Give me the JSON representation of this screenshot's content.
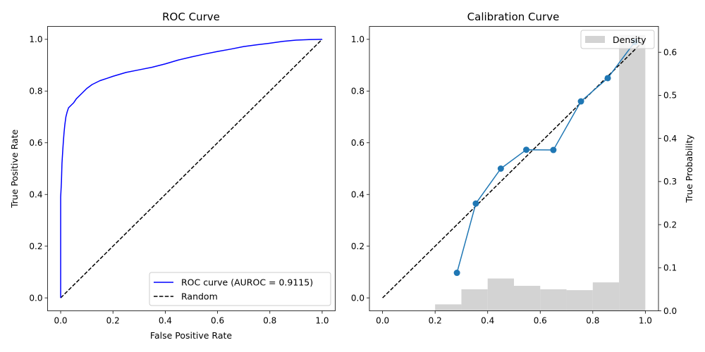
{
  "chart_data": [
    {
      "type": "line",
      "title": "ROC Curve",
      "xlabel": "False Positive Rate",
      "ylabel": "True Positive Rate",
      "xlim": [
        -0.05,
        1.05
      ],
      "ylim": [
        -0.05,
        1.05
      ],
      "xticks": [
        "0.0",
        "0.2",
        "0.4",
        "0.6",
        "0.8",
        "1.0"
      ],
      "yticks": [
        "0.0",
        "0.2",
        "0.4",
        "0.6",
        "0.8",
        "1.0"
      ],
      "legend_position": "lower-right",
      "grid": false,
      "series": [
        {
          "name": "ROC curve (AUROC = 0.9115)",
          "color": "#0000ff",
          "style": "solid",
          "x": [
            0.0,
            0.0,
            0.003,
            0.005,
            0.008,
            0.01,
            0.013,
            0.016,
            0.02,
            0.025,
            0.03,
            0.04,
            0.05,
            0.06,
            0.08,
            0.1,
            0.12,
            0.15,
            0.18,
            0.2,
            0.25,
            0.3,
            0.35,
            0.4,
            0.45,
            0.5,
            0.55,
            0.6,
            0.65,
            0.7,
            0.75,
            0.8,
            0.85,
            0.9,
            0.95,
            1.0
          ],
          "y": [
            0.0,
            0.39,
            0.45,
            0.52,
            0.57,
            0.6,
            0.64,
            0.67,
            0.7,
            0.72,
            0.735,
            0.745,
            0.755,
            0.77,
            0.79,
            0.81,
            0.825,
            0.84,
            0.85,
            0.857,
            0.872,
            0.882,
            0.892,
            0.905,
            0.92,
            0.932,
            0.943,
            0.953,
            0.962,
            0.972,
            0.979,
            0.985,
            0.992,
            0.997,
            0.999,
            1.0
          ]
        },
        {
          "name": "Random",
          "color": "#000000",
          "style": "dashed",
          "x": [
            0,
            1
          ],
          "y": [
            0,
            1
          ]
        }
      ]
    },
    {
      "type": "line",
      "title": "Calibration Curve",
      "xlabel": "",
      "ylabel": "",
      "y2label": "True Probability",
      "xlim": [
        -0.05,
        1.05
      ],
      "ylim": [
        -0.05,
        1.05
      ],
      "y2lim": [
        0,
        0.66
      ],
      "xticks": [
        "0.0",
        "0.2",
        "0.4",
        "0.6",
        "0.8",
        "1.0"
      ],
      "yticks": [
        "0.0",
        "0.2",
        "0.4",
        "0.6",
        "0.8",
        "1.0"
      ],
      "y2ticks": [
        "0.0",
        "0.1",
        "0.2",
        "0.3",
        "0.4",
        "0.5",
        "0.6"
      ],
      "legend_position": "upper-right",
      "grid": false,
      "series": [
        {
          "name": "",
          "color": "#1f77b4",
          "style": "solid-markers",
          "x": [
            0.283,
            0.355,
            0.45,
            0.547,
            0.65,
            0.755,
            0.857,
            0.96
          ],
          "y": [
            0.097,
            0.365,
            0.5,
            0.573,
            0.572,
            0.76,
            0.85,
            0.99
          ]
        },
        {
          "name": "",
          "color": "#000000",
          "style": "dashed",
          "x": [
            0,
            1
          ],
          "y": [
            0,
            1
          ]
        }
      ],
      "histogram": {
        "name": "Density",
        "color": "#d3d3d3",
        "bins": [
          [
            0.2,
            0.3
          ],
          [
            0.3,
            0.4
          ],
          [
            0.4,
            0.5
          ],
          [
            0.5,
            0.6
          ],
          [
            0.6,
            0.7
          ],
          [
            0.7,
            0.8
          ],
          [
            0.8,
            0.9
          ],
          [
            0.9,
            1.0
          ]
        ],
        "values": [
          0.015,
          0.05,
          0.075,
          0.058,
          0.05,
          0.048,
          0.066,
          0.64
        ]
      }
    }
  ]
}
